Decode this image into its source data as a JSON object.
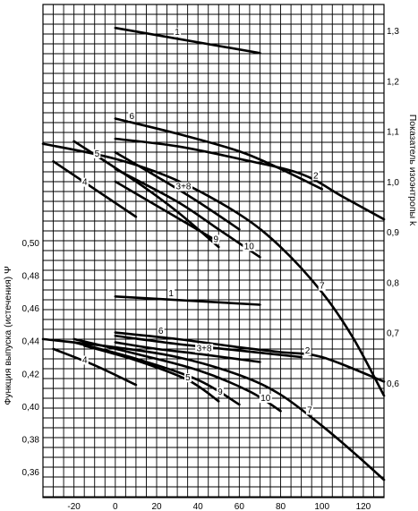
{
  "chart_data": [
    {
      "type": "line",
      "panel": "lower",
      "xlabel": "",
      "ylabel": "Функция выпуска (истечения) Ψ",
      "xlim": [
        -35,
        130
      ],
      "ylim": [
        0.35,
        0.58
      ],
      "x_ticks": [
        "-20",
        "0",
        "20",
        "40",
        "60",
        "80",
        "100",
        "120"
      ],
      "y_ticks": [
        "0,36",
        "0,38",
        "0,40",
        "0,42",
        "0,44",
        "0,46",
        "0,48",
        "0,50"
      ],
      "grid": true,
      "series": [
        {
          "name": "1",
          "x": [
            0,
            70
          ],
          "y": [
            0.467,
            0.462
          ]
        },
        {
          "name": "6",
          "x": [
            0,
            30,
            60,
            80,
            100,
            130
          ],
          "y": [
            0.445,
            0.441,
            0.436,
            0.433,
            0.43,
            0.415
          ]
        },
        {
          "name": "2",
          "x": [
            0,
            30,
            60,
            90
          ],
          "y": [
            0.443,
            0.438,
            0.434,
            0.43
          ]
        },
        {
          "name": "3+8",
          "x": [
            0,
            20,
            40,
            70
          ],
          "y": [
            0.439,
            0.435,
            0.432,
            0.427
          ]
        },
        {
          "name": "7",
          "x": [
            -35,
            0,
            30,
            60,
            80,
            100,
            115,
            130
          ],
          "y": [
            0.441,
            0.436,
            0.43,
            0.419,
            0.407,
            0.388,
            0.372,
            0.355
          ]
        },
        {
          "name": "10",
          "x": [
            -20,
            10,
            40,
            65,
            80
          ],
          "y": [
            0.441,
            0.432,
            0.422,
            0.409,
            0.397
          ]
        },
        {
          "name": "9",
          "x": [
            -20,
            10,
            40,
            60
          ],
          "y": [
            0.439,
            0.429,
            0.416,
            0.401
          ]
        },
        {
          "name": "5",
          "x": [
            -15,
            10,
            35,
            50
          ],
          "y": [
            0.437,
            0.428,
            0.416,
            0.403
          ]
        },
        {
          "name": "4",
          "x": [
            -30,
            -10,
            10
          ],
          "y": [
            0.435,
            0.425,
            0.413
          ]
        }
      ]
    },
    {
      "type": "line",
      "panel": "upper",
      "ylabel": "Показатель изоэнтропы k",
      "ylim": [
        0.55,
        1.35
      ],
      "y_ticks": [
        "0,6",
        "0,7",
        "0,8",
        "0,9",
        "1,0",
        "1,1",
        "1,2",
        "1,3"
      ],
      "series": [
        {
          "name": "1",
          "x": [
            0,
            70
          ],
          "y": [
            1.305,
            1.255
          ]
        },
        {
          "name": "6",
          "x": [
            0,
            30,
            60,
            80,
            100
          ],
          "y": [
            1.125,
            1.095,
            1.06,
            1.025,
            0.985
          ]
        },
        {
          "name": "2",
          "x": [
            0,
            30,
            60,
            90,
            110,
            130
          ],
          "y": [
            1.085,
            1.07,
            1.045,
            1.015,
            0.97,
            0.925
          ]
        },
        {
          "name": "3+8",
          "x": [
            0,
            20,
            40,
            60
          ],
          "y": [
            1.058,
            1.01,
            0.96,
            0.905
          ]
        },
        {
          "name": "7",
          "x": [
            -35,
            0,
            30,
            60,
            80,
            100,
            115,
            130
          ],
          "y": [
            1.075,
            1.045,
            1.002,
            0.935,
            0.87,
            0.78,
            0.69,
            0.575
          ]
        },
        {
          "name": "10",
          "x": [
            0,
            30,
            50,
            70
          ],
          "y": [
            1.025,
            0.96,
            0.905,
            0.85
          ]
        },
        {
          "name": "9",
          "x": [
            0,
            25,
            50
          ],
          "y": [
            1.0,
            0.94,
            0.88
          ]
        },
        {
          "name": "5",
          "x": [
            -20,
            10,
            30,
            50
          ],
          "y": [
            1.08,
            1.0,
            0.94,
            0.87
          ]
        },
        {
          "name": "4",
          "x": [
            -30,
            -10,
            10
          ],
          "y": [
            1.04,
            0.985,
            0.93
          ]
        }
      ]
    }
  ]
}
